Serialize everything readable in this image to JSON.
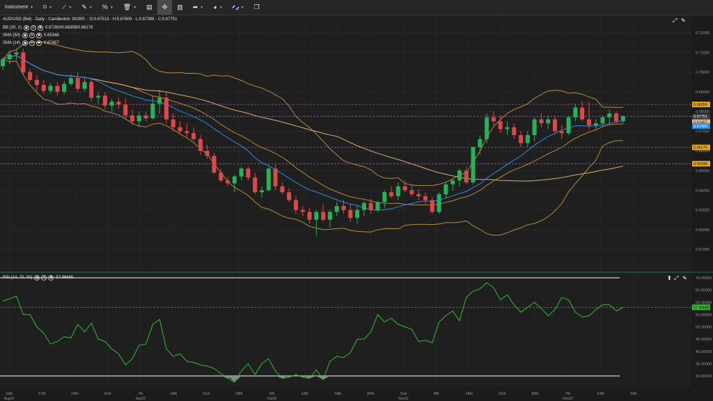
{
  "toolbar": {
    "instrument_label": "Instrument",
    "timeframe_label": "D"
  },
  "header": {
    "title": "AUD/USD (Bid) - Daily - Candlestick",
    "range": "90/300",
    "ohlc": "- O:0.67513 - H:0.67809 - L:0.67398 - C:0.67751"
  },
  "legend": {
    "bb_name": "BB (20, 2)",
    "bb_values": "0.67260/0.68359/0.66176",
    "sma50_name": "SMA (50)",
    "sma50_value": "0.65348",
    "sma14_name": "SMA (14)",
    "sma14_value": "0.67457"
  },
  "price_axis": {
    "ticks": [
      "0.72000",
      "0.71000",
      "0.70000",
      "0.69000",
      "0.68000",
      "0.67000",
      "0.66000",
      "0.65000",
      "0.64000",
      "0.63000",
      "0.62000",
      "0.61000"
    ],
    "tags": [
      {
        "label": "0.68359",
        "value": 0.68359,
        "color": "#e0a81e",
        "text": "#111"
      },
      {
        "label": "0.67751",
        "value": 0.67751,
        "color": "#3a3a3a",
        "text": "#fff"
      },
      {
        "label": "0.67457",
        "value": 0.67457,
        "color": "#e0c090",
        "text": "#111"
      },
      {
        "label": "0.67260",
        "value": 0.6726,
        "color": "#2c8ee6",
        "text": "#fff"
      },
      {
        "label": "0.66176",
        "value": 0.66176,
        "color": "#e0a81e",
        "text": "#111"
      },
      {
        "label": "0.65348",
        "value": 0.65348,
        "color": "#e0a81e",
        "text": "#111"
      }
    ]
  },
  "rsi": {
    "label": "RSI (14, 70, 30)",
    "value": "57.96685",
    "ticks": [
      "70.00000",
      "65.00000",
      "60.00000",
      "55.00000",
      "50.00000",
      "45.00000",
      "40.00000",
      "35.00000",
      "30.00000"
    ]
  },
  "date_axis": {
    "labels": [
      {
        "t": "10th",
        "sub": "Aug22"
      },
      {
        "t": "17th",
        "sub": ""
      },
      {
        "t": "24th",
        "sub": ""
      },
      {
        "t": "31st",
        "sub": ""
      },
      {
        "t": "7th",
        "sub": "Sep22"
      },
      {
        "t": "14th",
        "sub": ""
      },
      {
        "t": "21st",
        "sub": ""
      },
      {
        "t": "28th",
        "sub": ""
      },
      {
        "t": "5th",
        "sub": "Oct22"
      },
      {
        "t": "12th",
        "sub": ""
      },
      {
        "t": "19th",
        "sub": ""
      },
      {
        "t": "26th",
        "sub": ""
      },
      {
        "t": "2nd",
        "sub": "Nov22"
      },
      {
        "t": "9th",
        "sub": ""
      },
      {
        "t": "16th",
        "sub": ""
      },
      {
        "t": "23rd",
        "sub": ""
      },
      {
        "t": "30th",
        "sub": ""
      },
      {
        "t": "7th",
        "sub": "Dec22"
      },
      {
        "t": "14th",
        "sub": ""
      },
      {
        "t": "19th",
        "sub": ""
      }
    ]
  },
  "colors": {
    "bull": "#25b35a",
    "bear": "#e04848",
    "bb": "#b88a3a",
    "sma50": "#d8b070",
    "sma14": "#2c8ee6",
    "rsi": "#2fbf2f",
    "dashed": "#a050c0"
  },
  "chart_data": {
    "type": "candlestick",
    "ylim": [
      0.6058,
      0.7232
    ],
    "candles": [
      [
        0.703,
        0.7075,
        0.701,
        0.7065
      ],
      [
        0.7065,
        0.711,
        0.704,
        0.709
      ],
      [
        0.709,
        0.712,
        0.706,
        0.71
      ],
      [
        0.71,
        0.712,
        0.699,
        0.7
      ],
      [
        0.7,
        0.7015,
        0.695,
        0.696
      ],
      [
        0.696,
        0.6985,
        0.6905,
        0.6935
      ],
      [
        0.6935,
        0.696,
        0.689,
        0.6905
      ],
      [
        0.6905,
        0.6945,
        0.689,
        0.693
      ],
      [
        0.693,
        0.695,
        0.688,
        0.69
      ],
      [
        0.69,
        0.6955,
        0.6885,
        0.694
      ],
      [
        0.694,
        0.699,
        0.693,
        0.697
      ],
      [
        0.697,
        0.7,
        0.69,
        0.6915
      ],
      [
        0.6915,
        0.6975,
        0.69,
        0.695
      ],
      [
        0.695,
        0.697,
        0.685,
        0.687
      ],
      [
        0.687,
        0.69,
        0.684,
        0.688
      ],
      [
        0.688,
        0.69,
        0.681,
        0.683
      ],
      [
        0.683,
        0.6865,
        0.68,
        0.685
      ],
      [
        0.685,
        0.687,
        0.6815,
        0.6835
      ],
      [
        0.6835,
        0.6865,
        0.676,
        0.678
      ],
      [
        0.678,
        0.681,
        0.673,
        0.675
      ],
      [
        0.675,
        0.68,
        0.672,
        0.678
      ],
      [
        0.678,
        0.68,
        0.675,
        0.6765
      ],
      [
        0.6765,
        0.688,
        0.676,
        0.684
      ],
      [
        0.684,
        0.691,
        0.679,
        0.687
      ],
      [
        0.687,
        0.6895,
        0.674,
        0.676
      ],
      [
        0.676,
        0.679,
        0.67,
        0.672
      ],
      [
        0.672,
        0.675,
        0.669,
        0.67
      ],
      [
        0.67,
        0.674,
        0.667,
        0.669
      ],
      [
        0.669,
        0.672,
        0.665,
        0.666
      ],
      [
        0.666,
        0.668,
        0.658,
        0.66
      ],
      [
        0.66,
        0.663,
        0.656,
        0.6575
      ],
      [
        0.6575,
        0.659,
        0.648,
        0.649
      ],
      [
        0.649,
        0.651,
        0.644,
        0.645
      ],
      [
        0.645,
        0.647,
        0.642,
        0.6435
      ],
      [
        0.6435,
        0.648,
        0.639,
        0.647
      ],
      [
        0.647,
        0.652,
        0.645,
        0.651
      ],
      [
        0.651,
        0.652,
        0.645,
        0.6465
      ],
      [
        0.6465,
        0.649,
        0.638,
        0.639
      ],
      [
        0.639,
        0.642,
        0.636,
        0.64
      ],
      [
        0.64,
        0.652,
        0.6395,
        0.651
      ],
      [
        0.651,
        0.653,
        0.64,
        0.642
      ],
      [
        0.642,
        0.644,
        0.638,
        0.639
      ],
      [
        0.639,
        0.641,
        0.634,
        0.635
      ],
      [
        0.635,
        0.637,
        0.628,
        0.63
      ],
      [
        0.63,
        0.632,
        0.627,
        0.629
      ],
      [
        0.629,
        0.631,
        0.623,
        0.625
      ],
      [
        0.625,
        0.63,
        0.617,
        0.629
      ],
      [
        0.629,
        0.633,
        0.624,
        0.625
      ],
      [
        0.625,
        0.63,
        0.621,
        0.629
      ],
      [
        0.629,
        0.634,
        0.627,
        0.632
      ],
      [
        0.632,
        0.635,
        0.628,
        0.63
      ],
      [
        0.63,
        0.633,
        0.624,
        0.626
      ],
      [
        0.626,
        0.632,
        0.623,
        0.63
      ],
      [
        0.63,
        0.6345,
        0.627,
        0.6335
      ],
      [
        0.6335,
        0.6355,
        0.628,
        0.63
      ],
      [
        0.63,
        0.6345,
        0.629,
        0.634
      ],
      [
        0.634,
        0.64,
        0.631,
        0.639
      ],
      [
        0.639,
        0.642,
        0.636,
        0.637
      ],
      [
        0.637,
        0.644,
        0.635,
        0.642
      ],
      [
        0.642,
        0.645,
        0.639,
        0.64
      ],
      [
        0.64,
        0.643,
        0.637,
        0.638
      ],
      [
        0.638,
        0.6405,
        0.635,
        0.637
      ],
      [
        0.637,
        0.639,
        0.633,
        0.635
      ],
      [
        0.635,
        0.6365,
        0.628,
        0.629
      ],
      [
        0.629,
        0.639,
        0.628,
        0.638
      ],
      [
        0.638,
        0.644,
        0.636,
        0.643
      ],
      [
        0.643,
        0.646,
        0.64,
        0.645
      ],
      [
        0.645,
        0.651,
        0.642,
        0.65
      ],
      [
        0.65,
        0.652,
        0.643,
        0.644
      ],
      [
        0.644,
        0.662,
        0.643,
        0.662
      ],
      [
        0.662,
        0.668,
        0.658,
        0.666
      ],
      [
        0.666,
        0.679,
        0.664,
        0.677
      ],
      [
        0.677,
        0.68,
        0.673,
        0.675
      ],
      [
        0.675,
        0.678,
        0.669,
        0.671
      ],
      [
        0.671,
        0.675,
        0.668,
        0.672
      ],
      [
        0.672,
        0.674,
        0.666,
        0.668
      ],
      [
        0.668,
        0.67,
        0.662,
        0.664
      ],
      [
        0.664,
        0.67,
        0.662,
        0.668
      ],
      [
        0.668,
        0.677,
        0.665,
        0.676
      ],
      [
        0.676,
        0.679,
        0.672,
        0.674
      ],
      [
        0.674,
        0.678,
        0.671,
        0.676
      ],
      [
        0.676,
        0.678,
        0.669,
        0.67
      ],
      [
        0.67,
        0.673,
        0.666,
        0.669
      ],
      [
        0.669,
        0.678,
        0.668,
        0.677
      ],
      [
        0.677,
        0.684,
        0.675,
        0.682
      ],
      [
        0.682,
        0.685,
        0.675,
        0.676
      ],
      [
        0.676,
        0.685,
        0.671,
        0.673
      ],
      [
        0.673,
        0.676,
        0.671,
        0.674
      ],
      [
        0.674,
        0.678,
        0.672,
        0.677
      ],
      [
        0.677,
        0.681,
        0.673,
        0.679
      ],
      [
        0.679,
        0.68,
        0.674,
        0.675
      ],
      [
        0.67513,
        0.67809,
        0.67398,
        0.67751
      ]
    ],
    "rsi": [
      60.5,
      61.5,
      62.5,
      55,
      55,
      50,
      47.5,
      43,
      44,
      46,
      45.5,
      51,
      48,
      51.5,
      45,
      44,
      41,
      39,
      34.5,
      37,
      42.5,
      43,
      51,
      53,
      41,
      38,
      39,
      36,
      35.5,
      34.5,
      34,
      33,
      31,
      29,
      27.5,
      32,
      35,
      30.5,
      35,
      37,
      32,
      29,
      29.5,
      30.5,
      29.5,
      29,
      32.5,
      28.5,
      36,
      38,
      37.5,
      39.5,
      45,
      45,
      48,
      55,
      52,
      53.5,
      51,
      50,
      49,
      44,
      44.5,
      43.5,
      52,
      54.5,
      56.5,
      52.5,
      62,
      64.5,
      65.5,
      68,
      66,
      61,
      63,
      59,
      56,
      58,
      60,
      57.5,
      54.5,
      57,
      62,
      61,
      56,
      54,
      54.5,
      57,
      59,
      59,
      56.5,
      57.97
    ]
  }
}
